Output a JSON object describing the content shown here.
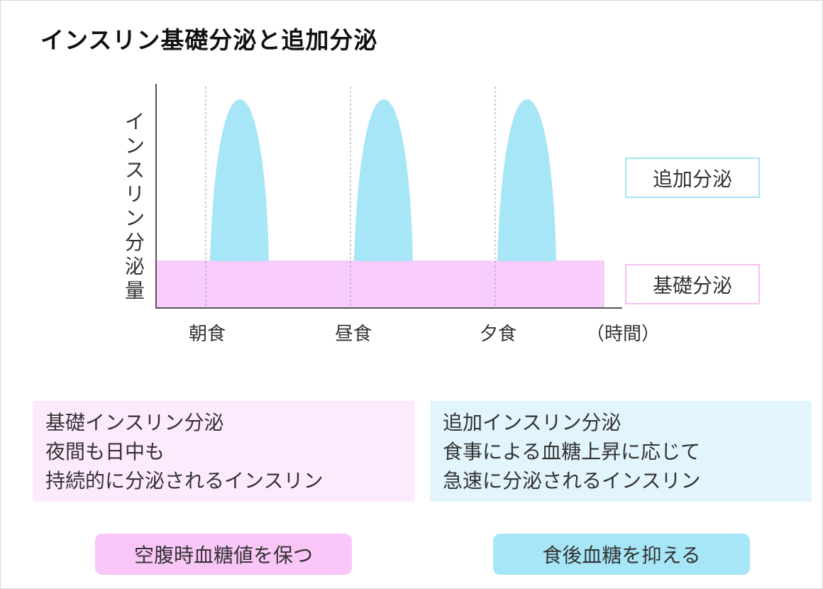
{
  "title": "インスリン基礎分泌と追加分泌",
  "chart_data": {
    "type": "area",
    "ylabel_chars": [
      "イ",
      "ン",
      "ス",
      "リ",
      "ン",
      "分",
      "泌",
      "量"
    ],
    "x_unit": "（時間）",
    "meals": [
      "朝食",
      "昼食",
      "夕食"
    ],
    "series": [
      {
        "name": "追加分泌",
        "color": "#a6e6f7",
        "kind": "meal-peaks"
      },
      {
        "name": "基礎分泌",
        "color": "#f9cdfb",
        "kind": "constant"
      }
    ]
  },
  "boxes": {
    "basal": {
      "lines": [
        "基礎インスリン分泌",
        "夜間も日中も",
        "持続的に分泌されるインスリン"
      ],
      "bg": "#fdeafd"
    },
    "bolus": {
      "lines": [
        "追加インスリン分泌",
        "食事による血糖上昇に応じて",
        "急速に分泌されるインスリン"
      ],
      "bg": "#e2f5fc"
    }
  },
  "effects": {
    "basal": "空腹時血糖値を保つ",
    "bolus": "食後血糖を抑える"
  }
}
